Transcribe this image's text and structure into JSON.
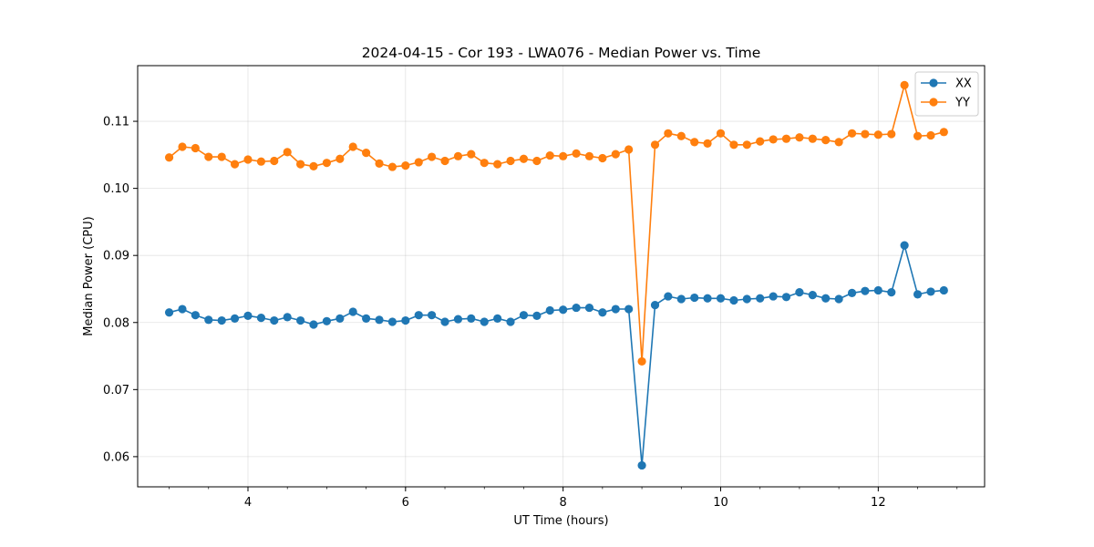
{
  "chart_data": {
    "type": "line",
    "title": "2024-04-15 - Cor 193 - LWA076 - Median Power vs. Time",
    "xlabel": "UT Time (hours)",
    "ylabel": "Median Power (CPU)",
    "xlim": [
      2.6,
      13.35
    ],
    "ylim": [
      0.0555,
      0.1183
    ],
    "xticks": [
      4,
      6,
      8,
      10,
      12
    ],
    "xtick_labels": [
      "4",
      "6",
      "8",
      "10",
      "12"
    ],
    "yticks": [
      0.06,
      0.07,
      0.08,
      0.09,
      0.1,
      0.11
    ],
    "ytick_labels": [
      "0.06",
      "0.07",
      "0.08",
      "0.09",
      "0.10",
      "0.11"
    ],
    "grid": true,
    "legend_position": "upper right",
    "colors": {
      "XX": "#1f77b4",
      "YY": "#ff7f0e"
    },
    "x": [
      3.0,
      3.167,
      3.333,
      3.5,
      3.667,
      3.833,
      4.0,
      4.167,
      4.333,
      4.5,
      4.667,
      4.833,
      5.0,
      5.167,
      5.333,
      5.5,
      5.667,
      5.833,
      6.0,
      6.167,
      6.333,
      6.5,
      6.667,
      6.833,
      7.0,
      7.167,
      7.333,
      7.5,
      7.667,
      7.833,
      8.0,
      8.167,
      8.333,
      8.5,
      8.667,
      8.833,
      9.0,
      9.167,
      9.333,
      9.5,
      9.667,
      9.833,
      10.0,
      10.167,
      10.333,
      10.5,
      10.667,
      10.833,
      11.0,
      11.167,
      11.333,
      11.5,
      11.667,
      11.833,
      12.0,
      12.167,
      12.333,
      12.5,
      12.667,
      12.833
    ],
    "series": [
      {
        "name": "XX",
        "values": [
          0.0815,
          0.082,
          0.0811,
          0.0804,
          0.0803,
          0.0806,
          0.081,
          0.0807,
          0.0803,
          0.0808,
          0.0803,
          0.0797,
          0.0802,
          0.0806,
          0.0816,
          0.0806,
          0.0804,
          0.0801,
          0.0803,
          0.0811,
          0.0811,
          0.0801,
          0.0805,
          0.0806,
          0.0801,
          0.0806,
          0.0801,
          0.0811,
          0.081,
          0.0818,
          0.0819,
          0.0822,
          0.0822,
          0.0815,
          0.082,
          0.082,
          0.0587,
          0.0826,
          0.0839,
          0.0835,
          0.0837,
          0.0836,
          0.0836,
          0.0833,
          0.0835,
          0.0836,
          0.0839,
          0.0838,
          0.0845,
          0.0841,
          0.0836,
          0.0835,
          0.0844,
          0.0847,
          0.0848,
          0.0845,
          0.0915,
          0.0842,
          0.0846,
          0.0848
        ]
      },
      {
        "name": "YY",
        "values": [
          0.1046,
          0.1062,
          0.106,
          0.1047,
          0.1047,
          0.1036,
          0.1043,
          0.104,
          0.1041,
          0.1054,
          0.1036,
          0.1033,
          0.1038,
          0.1044,
          0.1062,
          0.1053,
          0.1037,
          0.1032,
          0.1034,
          0.1039,
          0.1047,
          0.1041,
          0.1048,
          0.1051,
          0.1038,
          0.1036,
          0.1041,
          0.1044,
          0.1041,
          0.1049,
          0.1048,
          0.1052,
          0.1048,
          0.1045,
          0.1051,
          0.1058,
          0.0742,
          0.1065,
          0.1082,
          0.1078,
          0.1069,
          0.1067,
          0.1082,
          0.1065,
          0.1065,
          0.107,
          0.1073,
          0.1074,
          0.1076,
          0.1074,
          0.1072,
          0.1069,
          0.1082,
          0.1081,
          0.108,
          0.1081,
          0.1154,
          0.1078,
          0.1079,
          0.1084
        ]
      }
    ]
  }
}
